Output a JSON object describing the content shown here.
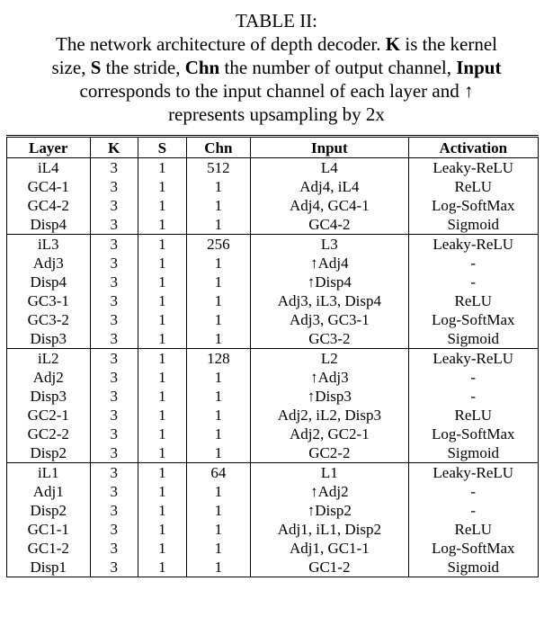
{
  "caption": {
    "line1": "TABLE II:",
    "line2_a": "The network architecture of depth decoder. ",
    "line2_K": "K",
    "line2_b": " is the kernel",
    "line3_a": "size, ",
    "line3_S": "S",
    "line3_b": " the stride, ",
    "line3_Chn": "Chn",
    "line3_c": " the number of output channel, ",
    "line3_Input": "Input",
    "line4": "corresponds to the input channel of each layer and ↑",
    "line5": "represents upsampling by 2x"
  },
  "headers": [
    "Layer",
    "K",
    "S",
    "Chn",
    "Input",
    "Activation"
  ],
  "groups": [
    [
      [
        "iL4",
        "3",
        "1",
        "512",
        "L4",
        "Leaky-ReLU"
      ],
      [
        "GC4-1",
        "3",
        "1",
        "1",
        "Adj4, iL4",
        "ReLU"
      ],
      [
        "GC4-2",
        "3",
        "1",
        "1",
        "Adj4, GC4-1",
        "Log-SoftMax"
      ],
      [
        "Disp4",
        "3",
        "1",
        "1",
        "GC4-2",
        "Sigmoid"
      ]
    ],
    [
      [
        "iL3",
        "3",
        "1",
        "256",
        "L3",
        "Leaky-ReLU"
      ],
      [
        "Adj3",
        "3",
        "1",
        "1",
        "↑Adj4",
        "-"
      ],
      [
        "Disp4",
        "3",
        "1",
        "1",
        "↑Disp4",
        "-"
      ],
      [
        "GC3-1",
        "3",
        "1",
        "1",
        "Adj3, iL3, Disp4",
        "ReLU"
      ],
      [
        "GC3-2",
        "3",
        "1",
        "1",
        "Adj3, GC3-1",
        "Log-SoftMax"
      ],
      [
        "Disp3",
        "3",
        "1",
        "1",
        "GC3-2",
        "Sigmoid"
      ]
    ],
    [
      [
        "iL2",
        "3",
        "1",
        "128",
        "L2",
        "Leaky-ReLU"
      ],
      [
        "Adj2",
        "3",
        "1",
        "1",
        "↑Adj3",
        "-"
      ],
      [
        "Disp3",
        "3",
        "1",
        "1",
        "↑Disp3",
        "-"
      ],
      [
        "GC2-1",
        "3",
        "1",
        "1",
        "Adj2, iL2, Disp3",
        "ReLU"
      ],
      [
        "GC2-2",
        "3",
        "1",
        "1",
        "Adj2, GC2-1",
        "Log-SoftMax"
      ],
      [
        "Disp2",
        "3",
        "1",
        "1",
        "GC2-2",
        "Sigmoid"
      ]
    ],
    [
      [
        "iL1",
        "3",
        "1",
        "64",
        "L1",
        "Leaky-ReLU"
      ],
      [
        "Adj1",
        "3",
        "1",
        "1",
        "↑Adj2",
        "-"
      ],
      [
        "Disp2",
        "3",
        "1",
        "1",
        "↑Disp2",
        "-"
      ],
      [
        "GC1-1",
        "3",
        "1",
        "1",
        "Adj1, iL1, Disp2",
        "ReLU"
      ],
      [
        "GC1-2",
        "3",
        "1",
        "1",
        "Adj1, GC1-1",
        "Log-SoftMax"
      ],
      [
        "Disp1",
        "3",
        "1",
        "1",
        "GC1-2",
        "Sigmoid"
      ]
    ]
  ]
}
